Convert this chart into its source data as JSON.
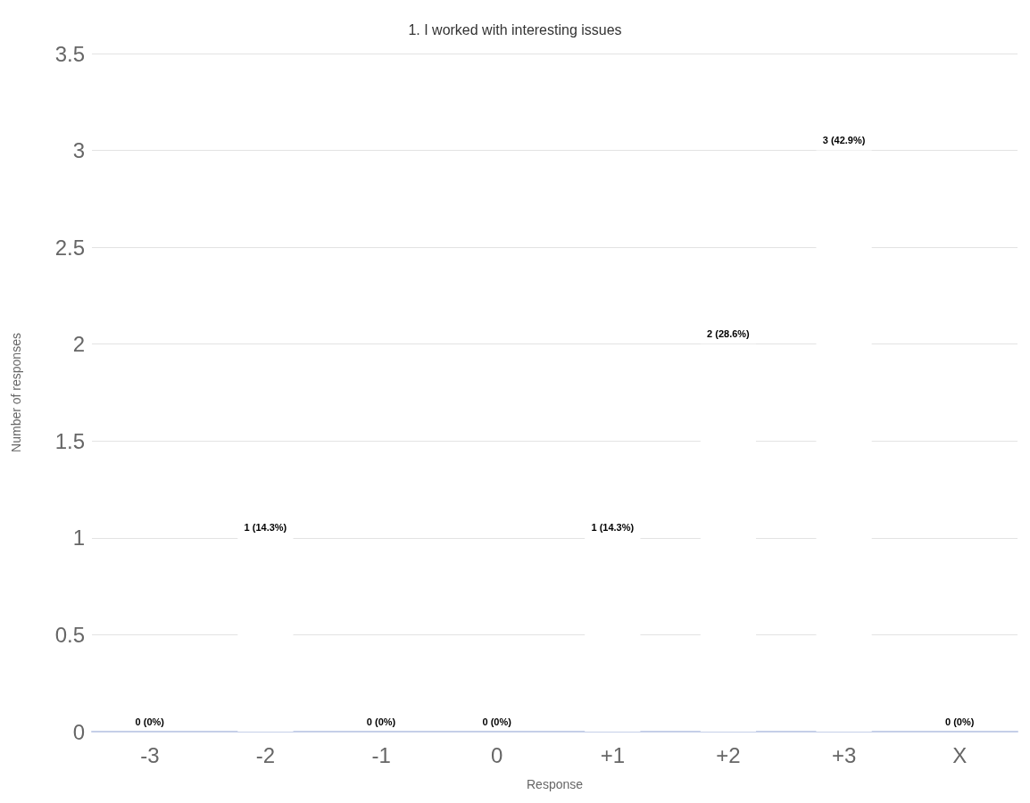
{
  "chart_data": {
    "type": "bar",
    "title": "1. I worked with interesting issues",
    "xlabel": "Response",
    "ylabel": "Number of responses",
    "categories": [
      "-3",
      "-2",
      "-1",
      "0",
      "+1",
      "+2",
      "+3",
      "X"
    ],
    "values": [
      0,
      1,
      0,
      0,
      1,
      2,
      3,
      0
    ],
    "value_labels": [
      "0 (0%)",
      "1 (14.3%)",
      "0 (0%)",
      "0 (0%)",
      "1 (14.3%)",
      "2 (28.6%)",
      "3 (42.9%)",
      "0 (0%)"
    ],
    "color": "#ffffff",
    "ylim": [
      0,
      3.5
    ],
    "yticks": [
      0,
      0.5,
      1,
      1.5,
      2,
      2.5,
      3,
      3.5
    ],
    "grid": "y"
  }
}
